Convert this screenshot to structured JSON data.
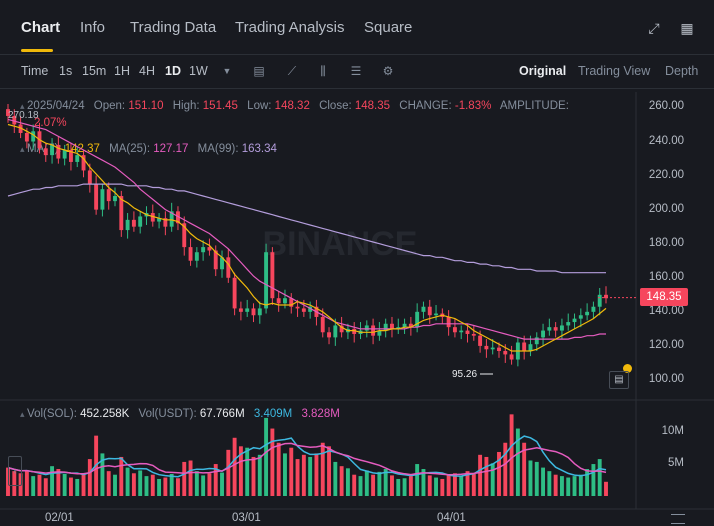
{
  "tabs": [
    "Chart",
    "Info",
    "Trading Data",
    "Trading Analysis",
    "Square"
  ],
  "timeframes": [
    "Time",
    "1s",
    "15m",
    "1H",
    "4H",
    "1D",
    "1W"
  ],
  "active_timeframe": "1D",
  "views": [
    "Original",
    "Trading View",
    "Depth"
  ],
  "active_view": "Original",
  "ohlc": {
    "date": "2025/04/24",
    "open_label": "Open:",
    "open": "151.10",
    "high_label": "High:",
    "high": "151.45",
    "low_label": "Low:",
    "low": "148.32",
    "close_label": "Close:",
    "close": "148.35",
    "change_label": "CHANGE:",
    "change": "-1.83%",
    "amplitude_label": "AMPLITUDE:",
    "amplitude": "2.07%"
  },
  "ma": {
    "ma7_label": "MA(7):",
    "ma7": "142.37",
    "ma25_label": "MA(25):",
    "ma25": "127.17",
    "ma99_label": "MA(99):",
    "ma99": "163.34"
  },
  "vol": {
    "sol_label": "Vol(SOL):",
    "sol": "452.258K",
    "usdt_label": "Vol(USDT):",
    "usdt": "67.766M",
    "ma1": "3.409M",
    "ma2": "3.828M"
  },
  "price_axis": [
    "260.00",
    "240.00",
    "220.00",
    "200.00",
    "180.00",
    "160.00",
    "140.00",
    "120.00",
    "100.00"
  ],
  "current_price": "148.35",
  "high_marker": "270.18",
  "low_marker": "95.26",
  "vol_axis": [
    "10M",
    "5M"
  ],
  "date_axis": [
    "02/01",
    "03/01",
    "04/01"
  ],
  "watermark": "BINANCE",
  "colors": {
    "up": "#2ebd85",
    "down": "#f6465d",
    "ma7": "#f0b90b",
    "ma25": "#e55cbf",
    "ma99": "#b39ddb",
    "accent": "#f0b90b"
  },
  "chart_data": {
    "type": "candlestick",
    "x": [
      "01/19",
      "01/20",
      "01/21",
      "01/22",
      "01/23",
      "01/24",
      "01/25",
      "01/26",
      "01/27",
      "01/28",
      "01/29",
      "01/30",
      "01/31",
      "02/01",
      "02/02",
      "02/03",
      "02/04",
      "02/05",
      "02/06",
      "02/07",
      "02/08",
      "02/09",
      "02/10",
      "02/11",
      "02/12",
      "02/13",
      "02/14",
      "02/15",
      "02/16",
      "02/17",
      "02/18",
      "02/19",
      "02/20",
      "02/21",
      "02/22",
      "02/23",
      "02/24",
      "02/25",
      "02/26",
      "02/27",
      "02/28",
      "03/01",
      "03/02",
      "03/03",
      "03/04",
      "03/05",
      "03/06",
      "03/07",
      "03/08",
      "03/09",
      "03/10",
      "03/11",
      "03/12",
      "03/13",
      "03/14",
      "03/15",
      "03/16",
      "03/17",
      "03/18",
      "03/19",
      "03/20",
      "03/21",
      "03/22",
      "03/23",
      "03/24",
      "03/25",
      "03/26",
      "03/27",
      "03/28",
      "03/29",
      "03/30",
      "03/31",
      "04/01",
      "04/02",
      "04/03",
      "04/04",
      "04/05",
      "04/06",
      "04/07",
      "04/08",
      "04/09",
      "04/10",
      "04/11",
      "04/12",
      "04/13",
      "04/14",
      "04/15",
      "04/16",
      "04/17",
      "04/18",
      "04/19",
      "04/20",
      "04/21",
      "04/22",
      "04/23",
      "04/24"
    ],
    "close": [
      255,
      250,
      245,
      240,
      246,
      236,
      232,
      238,
      230,
      235,
      228,
      232,
      223,
      215,
      200,
      212,
      205,
      208,
      188,
      194,
      190,
      196,
      198,
      193,
      195,
      190,
      199,
      192,
      178,
      170,
      175,
      178,
      176,
      165,
      172,
      160,
      142,
      140,
      142,
      138,
      142,
      175,
      148,
      145,
      148,
      143,
      142,
      140,
      143,
      137,
      128,
      125,
      132,
      128,
      130,
      127,
      129,
      132,
      126,
      129,
      133,
      130,
      131,
      133,
      131,
      140,
      143,
      138,
      139,
      137,
      131,
      128,
      129,
      127,
      126,
      120,
      118,
      119,
      117,
      115,
      112,
      122,
      117,
      121,
      125,
      129,
      131,
      129,
      132,
      134,
      136,
      138,
      140,
      143,
      150,
      148
    ],
    "ma7": [
      250,
      249,
      248,
      246,
      244,
      241,
      239,
      238,
      236,
      235,
      234,
      233,
      230,
      225,
      221,
      217,
      213,
      210,
      206,
      204,
      201,
      199,
      197,
      196,
      195,
      194,
      194,
      193,
      190,
      186,
      183,
      181,
      179,
      175,
      172,
      168,
      162,
      158,
      154,
      149,
      145,
      144,
      145,
      144,
      144,
      144,
      146,
      145,
      144,
      142,
      140,
      137,
      134,
      131,
      129,
      129,
      128,
      128,
      128,
      129,
      129,
      130,
      130,
      131,
      131,
      133,
      135,
      136,
      137,
      138,
      137,
      136,
      134,
      132,
      129,
      127,
      125,
      123,
      121,
      119,
      117,
      117,
      117,
      117,
      118,
      120,
      122,
      124,
      126,
      128,
      130,
      132,
      134,
      136,
      139,
      142
    ],
    "ma25": [
      253,
      252,
      251,
      250,
      249,
      248,
      247,
      245,
      243,
      241,
      239,
      237,
      235,
      233,
      231,
      229,
      227,
      225,
      222,
      219,
      216,
      212,
      209,
      206,
      203,
      200,
      198,
      196,
      194,
      192,
      190,
      188,
      186,
      183,
      180,
      177,
      173,
      169,
      165,
      161,
      158,
      156,
      154,
      152,
      150,
      148,
      146,
      144,
      142,
      140,
      138,
      136,
      134,
      133,
      132,
      131,
      130,
      130,
      130,
      130,
      130,
      130,
      130,
      130,
      131,
      131,
      132,
      132,
      133,
      133,
      133,
      133,
      133,
      133,
      132,
      131,
      130,
      129,
      128,
      127,
      126,
      125,
      124,
      124,
      124,
      124,
      124,
      124,
      124,
      124,
      125,
      125,
      126,
      126,
      127,
      127
    ],
    "ma99": [
      208,
      209,
      210,
      211,
      212,
      212,
      213,
      213,
      214,
      214,
      214,
      214,
      215,
      215,
      215,
      215,
      215,
      215,
      215,
      214,
      214,
      214,
      214,
      213,
      213,
      212,
      212,
      211,
      211,
      210,
      209,
      208,
      207,
      206,
      205,
      204,
      203,
      202,
      201,
      200,
      199,
      198,
      197,
      196,
      195,
      194,
      193,
      192,
      191,
      190,
      189,
      188,
      187,
      186,
      185,
      184,
      183,
      182,
      181,
      180,
      179,
      178,
      177,
      176,
      175,
      174,
      173,
      173,
      172,
      172,
      171,
      170,
      170,
      169,
      169,
      168,
      168,
      167,
      167,
      166,
      166,
      165,
      165,
      165,
      164,
      164,
      164,
      164,
      163,
      163,
      163,
      163,
      163,
      163,
      163,
      163
    ],
    "volume_millions": [
      4.0,
      3.5,
      3.2,
      3.6,
      2.8,
      3.0,
      2.5,
      4.2,
      3.8,
      3.1,
      2.6,
      2.4,
      3.2,
      5.2,
      8.5,
      6.0,
      3.5,
      3.0,
      5.5,
      4.0,
      3.2,
      3.6,
      2.8,
      3.0,
      2.4,
      2.6,
      3.1,
      2.5,
      4.8,
      5.0,
      3.5,
      2.9,
      3.2,
      4.5,
      3.3,
      6.5,
      8.2,
      7.0,
      6.8,
      5.5,
      5.8,
      11.0,
      9.5,
      7.5,
      6.0,
      6.8,
      5.2,
      5.8,
      5.5,
      6.0,
      7.5,
      7.0,
      4.8,
      4.2,
      3.9,
      3.0,
      2.8,
      3.6,
      3.0,
      3.4,
      3.8,
      2.9,
      2.4,
      2.5,
      2.8,
      4.5,
      3.8,
      2.9,
      2.6,
      2.4,
      3.0,
      3.2,
      2.8,
      3.5,
      3.1,
      5.8,
      5.5,
      4.6,
      6.2,
      7.5,
      11.5,
      9.5,
      7.5,
      5.0,
      4.8,
      4.0,
      3.5,
      3.0,
      2.8,
      2.6,
      2.8,
      3.0,
      3.8,
      4.5,
      5.2,
      2.0
    ],
    "volume_ma1_millions": 3.409,
    "volume_ma2_millions": 3.828,
    "ylim": [
      90,
      272
    ],
    "vol_ylim": [
      0,
      13
    ]
  }
}
